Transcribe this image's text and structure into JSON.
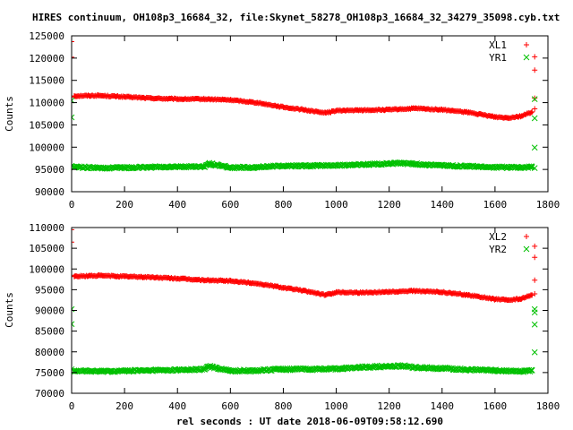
{
  "title": "HIRES continuum, OH108p3_16684_32, file:Skynet_58278_OH108p3_16684_32_34279_35098.cyb.txt",
  "chart_data": [
    {
      "type": "scatter",
      "ylabel": "Counts",
      "xlabel": "",
      "xlim": [
        0,
        1800
      ],
      "ylim": [
        90000,
        125000
      ],
      "xticks": [
        0,
        200,
        400,
        600,
        800,
        1000,
        1200,
        1400,
        1600,
        1800
      ],
      "yticks": [
        90000,
        95000,
        100000,
        105000,
        110000,
        115000,
        120000,
        125000
      ],
      "legend_position": "top-right",
      "grid": false,
      "series": [
        {
          "name": "XL1",
          "marker": "plus",
          "color": "#ff0000",
          "points": [
            [
              0,
              123700
            ],
            [
              0,
              120200
            ],
            [
              0,
              111200
            ],
            [
              10,
              111500
            ],
            [
              100,
              111600
            ],
            [
              200,
              111300
            ],
            [
              300,
              111000
            ],
            [
              400,
              110800
            ],
            [
              500,
              110800
            ],
            [
              600,
              110600
            ],
            [
              700,
              110000
            ],
            [
              800,
              109000
            ],
            [
              900,
              108200
            ],
            [
              960,
              107700
            ],
            [
              1000,
              108200
            ],
            [
              1100,
              108300
            ],
            [
              1200,
              108400
            ],
            [
              1300,
              108700
            ],
            [
              1400,
              108400
            ],
            [
              1500,
              107800
            ],
            [
              1600,
              106800
            ],
            [
              1650,
              106600
            ],
            [
              1700,
              107000
            ],
            [
              1740,
              107900
            ],
            [
              1750,
              120300
            ],
            [
              1750,
              117300
            ],
            [
              1750,
              111000
            ],
            [
              1750,
              108600
            ]
          ]
        },
        {
          "name": "YR1",
          "marker": "cross",
          "color": "#00c000",
          "points": [
            [
              0,
              110500
            ],
            [
              0,
              106700
            ],
            [
              0,
              95800
            ],
            [
              10,
              95600
            ],
            [
              100,
              95300
            ],
            [
              200,
              95400
            ],
            [
              300,
              95500
            ],
            [
              400,
              95600
            ],
            [
              500,
              95600
            ],
            [
              520,
              96300
            ],
            [
              600,
              95400
            ],
            [
              700,
              95500
            ],
            [
              800,
              95800
            ],
            [
              900,
              95800
            ],
            [
              1000,
              95900
            ],
            [
              1100,
              96100
            ],
            [
              1200,
              96300
            ],
            [
              1250,
              96400
            ],
            [
              1300,
              96200
            ],
            [
              1400,
              95900
            ],
            [
              1500,
              95700
            ],
            [
              1600,
              95500
            ],
            [
              1700,
              95400
            ],
            [
              1740,
              95500
            ],
            [
              1750,
              110800
            ],
            [
              1750,
              106500
            ],
            [
              1750,
              99900
            ],
            [
              1750,
              95300
            ]
          ]
        }
      ]
    },
    {
      "type": "scatter",
      "ylabel": "Counts",
      "xlabel": "rel seconds : UT date 2018-06-09T09:58:12.690",
      "xlim": [
        0,
        1800
      ],
      "ylim": [
        70000,
        110000
      ],
      "xticks": [
        0,
        200,
        400,
        600,
        800,
        1000,
        1200,
        1400,
        1600,
        1800
      ],
      "yticks": [
        70000,
        75000,
        80000,
        85000,
        90000,
        95000,
        100000,
        105000,
        110000
      ],
      "legend_position": "top-right",
      "grid": false,
      "series": [
        {
          "name": "XL2",
          "marker": "plus",
          "color": "#ff0000",
          "points": [
            [
              0,
              109500
            ],
            [
              0,
              106500
            ],
            [
              0,
              98500
            ],
            [
              10,
              98200
            ],
            [
              100,
              98400
            ],
            [
              200,
              98200
            ],
            [
              300,
              98000
            ],
            [
              400,
              97700
            ],
            [
              500,
              97300
            ],
            [
              600,
              97100
            ],
            [
              700,
              96500
            ],
            [
              800,
              95500
            ],
            [
              900,
              94500
            ],
            [
              960,
              93700
            ],
            [
              1000,
              94400
            ],
            [
              1100,
              94300
            ],
            [
              1200,
              94500
            ],
            [
              1300,
              94700
            ],
            [
              1400,
              94400
            ],
            [
              1500,
              93700
            ],
            [
              1600,
              92700
            ],
            [
              1650,
              92500
            ],
            [
              1700,
              92800
            ],
            [
              1740,
              93700
            ],
            [
              1750,
              105500
            ],
            [
              1750,
              102800
            ],
            [
              1750,
              97300
            ],
            [
              1750,
              94000
            ]
          ]
        },
        {
          "name": "YR2",
          "marker": "cross",
          "color": "#00c000",
          "points": [
            [
              0,
              90300
            ],
            [
              0,
              86700
            ],
            [
              0,
              75800
            ],
            [
              10,
              75500
            ],
            [
              100,
              75300
            ],
            [
              200,
              75400
            ],
            [
              300,
              75500
            ],
            [
              400,
              75600
            ],
            [
              500,
              75800
            ],
            [
              520,
              76500
            ],
            [
              600,
              75400
            ],
            [
              700,
              75500
            ],
            [
              800,
              75800
            ],
            [
              900,
              75800
            ],
            [
              1000,
              75900
            ],
            [
              1100,
              76300
            ],
            [
              1200,
              76500
            ],
            [
              1250,
              76600
            ],
            [
              1300,
              76200
            ],
            [
              1400,
              76000
            ],
            [
              1500,
              75700
            ],
            [
              1600,
              75500
            ],
            [
              1700,
              75300
            ],
            [
              1740,
              75500
            ],
            [
              1750,
              90300
            ],
            [
              1750,
              89500
            ],
            [
              1750,
              86600
            ],
            [
              1750,
              79900
            ]
          ]
        }
      ]
    }
  ]
}
